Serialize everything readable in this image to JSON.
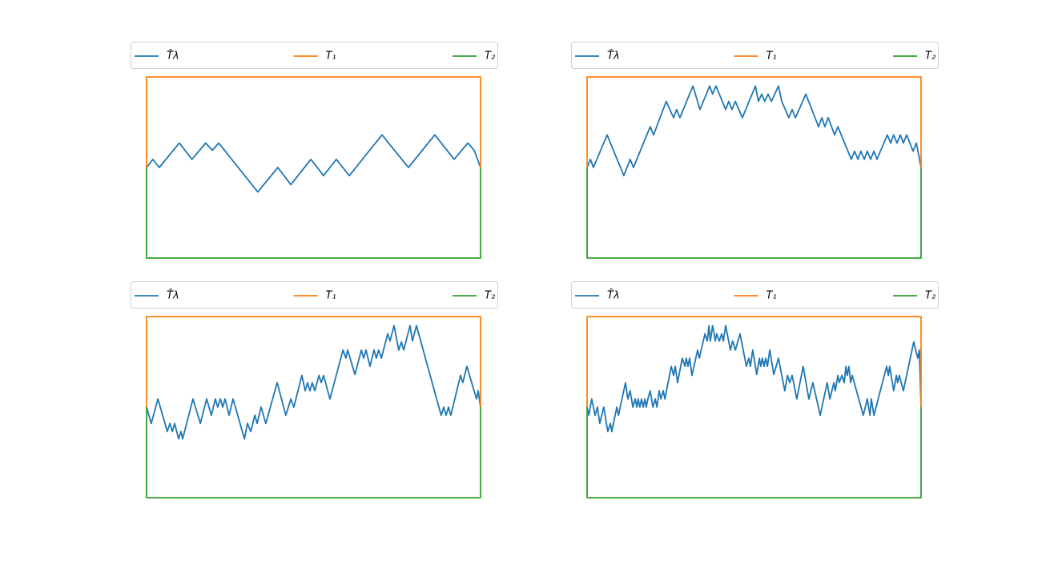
{
  "chart_data": [
    {
      "type": "line",
      "xlim": [
        0,
        100
      ],
      "ylim": [
        -1,
        1
      ],
      "legend": "top",
      "series": [
        {
          "name": "T̂λ",
          "color": "#1f77b4",
          "x": [
            0,
            1.9,
            3.8,
            9.8,
            13.6,
            17.7,
            19.7,
            21.6,
            33.3,
            39.3,
            43.2,
            49.2,
            53.0,
            56.8,
            60.7,
            70.5,
            78.4,
            86.3,
            92.1,
            96.2,
            98.1,
            100
          ],
          "values": [
            0,
            0.09,
            0,
            0.27,
            0.09,
            0.27,
            0.19,
            0.27,
            -0.27,
            0,
            -0.19,
            0.09,
            -0.09,
            0.09,
            -0.09,
            0.36,
            0,
            0.36,
            0.09,
            0.27,
            0.19,
            0
          ]
        },
        {
          "name": "T₁",
          "color": "#ff7f0e",
          "x": [
            0,
            0,
            100,
            100
          ],
          "values": [
            0,
            1,
            1,
            0
          ]
        },
        {
          "name": "T₂",
          "color": "#2ca02c",
          "x": [
            0,
            0,
            100,
            100
          ],
          "values": [
            0,
            -1,
            -1,
            0
          ]
        }
      ]
    },
    {
      "type": "line",
      "xlim": [
        0,
        100
      ],
      "ylim": [
        -1,
        1
      ],
      "legend": "top",
      "series": [
        {
          "name": "T̂λ",
          "color": "#1f77b4",
          "x": [
            0,
            1.0,
            1.9,
            6.0,
            11.0,
            12.9,
            13.9,
            18.9,
            19.9,
            23.7,
            25.9,
            26.8,
            27.8,
            31.7,
            33.8,
            36.7,
            37.6,
            38.6,
            41.5,
            42.4,
            43.4,
            44.4,
            46.5,
            50.4,
            51.3,
            52.3,
            53.2,
            54.2,
            55.2,
            57.3,
            58.3,
            60.4,
            61.4,
            62.4,
            65.5,
            69.3,
            70.3,
            71.2,
            72.2,
            74.1,
            75.1,
            79.1,
            80.1,
            81.1,
            82.0,
            83.0,
            83.9,
            84.9,
            85.9,
            86.8,
            89.9,
            90.9,
            91.8,
            92.8,
            93.8,
            94.7,
            95.7,
            97.6,
            98.6,
            100
          ],
          "values": [
            0,
            0.09,
            0,
            0.36,
            -0.09,
            0.09,
            0,
            0.45,
            0.36,
            0.73,
            0.55,
            0.64,
            0.55,
            0.9,
            0.64,
            0.9,
            0.81,
            0.9,
            0.64,
            0.73,
            0.64,
            0.73,
            0.55,
            0.9,
            0.73,
            0.81,
            0.73,
            0.81,
            0.73,
            0.9,
            0.73,
            0.55,
            0.64,
            0.55,
            0.81,
            0.45,
            0.55,
            0.45,
            0.55,
            0.36,
            0.45,
            0.09,
            0.18,
            0.09,
            0.18,
            0.09,
            0.18,
            0.09,
            0.18,
            0.09,
            0.36,
            0.27,
            0.36,
            0.27,
            0.36,
            0.27,
            0.36,
            0.18,
            0.27,
            0
          ]
        },
        {
          "name": "T₁",
          "color": "#ff7f0e",
          "x": [
            0,
            0,
            100,
            100
          ],
          "values": [
            0,
            1,
            1,
            0
          ]
        },
        {
          "name": "T₂",
          "color": "#2ca02c",
          "x": [
            0,
            0,
            100,
            100
          ],
          "values": [
            0,
            -1,
            -1,
            0
          ]
        }
      ]
    },
    {
      "type": "line",
      "xlim": [
        0,
        100
      ],
      "ylim": [
        -1,
        1
      ],
      "legend": "top",
      "series": [
        {
          "name": "T̂λ",
          "color": "#1f77b4",
          "x": [
            0,
            1.4,
            3.4,
            6.2,
            7.0,
            7.7,
            8.4,
            9.6,
            10.3,
            10.8,
            13.9,
            16.1,
            18.0,
            19.4,
            20.6,
            21.3,
            22.1,
            22.8,
            23.5,
            24.7,
            25.9,
            29.3,
            30.2,
            31.2,
            32.4,
            33.1,
            34.3,
            35.7,
            39.1,
            41.7,
            43.2,
            44.1,
            46.5,
            47.5,
            48.2,
            48.9,
            49.6,
            50.4,
            51.6,
            52.3,
            53.0,
            54.9,
            58.8,
            59.7,
            60.2,
            62.4,
            64.3,
            65.0,
            65.7,
            66.9,
            68.1,
            68.8,
            69.5,
            70.3,
            72.2,
            72.9,
            74.1,
            75.5,
            76.3,
            77.0,
            78.9,
            79.6,
            80.8,
            88.2,
            89.0,
            89.7,
            90.4,
            91.1,
            94.0,
            94.7,
            95.9,
            98.8,
            99.3,
            100
          ],
          "values": [
            0,
            -0.18,
            0.09,
            -0.27,
            -0.18,
            -0.27,
            -0.18,
            -0.35,
            -0.27,
            -0.35,
            0.09,
            -0.18,
            0.09,
            -0.09,
            0.09,
            0,
            0.09,
            0,
            0.09,
            -0.09,
            0.09,
            -0.35,
            -0.18,
            -0.27,
            -0.09,
            -0.18,
            0,
            -0.18,
            0.27,
            -0.09,
            0.09,
            0,
            0.35,
            0.18,
            0.27,
            0.18,
            0.27,
            0.18,
            0.35,
            0.27,
            0.35,
            0.09,
            0.63,
            0.54,
            0.63,
            0.36,
            0.63,
            0.54,
            0.63,
            0.45,
            0.63,
            0.54,
            0.63,
            0.54,
            0.81,
            0.73,
            0.9,
            0.63,
            0.72,
            0.63,
            0.9,
            0.73,
            0.9,
            -0.09,
            0,
            -0.09,
            0,
            -0.09,
            0.35,
            0.27,
            0.45,
            0.09,
            0.18,
            0
          ]
        },
        {
          "name": "T₁",
          "color": "#ff7f0e",
          "x": [
            0,
            0,
            100,
            100
          ],
          "values": [
            0,
            1,
            1,
            0
          ]
        },
        {
          "name": "T₂",
          "color": "#2ca02c",
          "x": [
            0,
            0,
            100,
            100
          ],
          "values": [
            0,
            -1,
            -1,
            0
          ]
        }
      ]
    },
    {
      "type": "line",
      "xlim": [
        0,
        100
      ],
      "ylim": [
        -1,
        1
      ],
      "legend": "top",
      "series": [
        {
          "name": "T̂λ",
          "color": "#1f77b4",
          "x": [
            0,
            0.5,
            1.4,
            2.4,
            3.1,
            3.8,
            5.0,
            6.2,
            7.0,
            7.4,
            8.9,
            9.4,
            11.5,
            12.2,
            12.9,
            13.7,
            14.4,
            14.9,
            15.3,
            15.8,
            16.3,
            16.8,
            17.3,
            17.7,
            18.2,
            18.9,
            19.7,
            20.4,
            20.9,
            21.6,
            22.1,
            22.8,
            23.3,
            25.2,
            25.9,
            26.4,
            27.1,
            28.5,
            29.3,
            29.7,
            30.2,
            30.7,
            31.4,
            33.1,
            33.6,
            35.3,
            36.0,
            36.5,
            36.9,
            37.6,
            38.4,
            38.8,
            39.6,
            40.3,
            40.8,
            41.5,
            42.9,
            43.6,
            44.4,
            45.8,
            47.7,
            48.4,
            48.9,
            49.6,
            50.8,
            51.6,
            52.0,
            52.5,
            53.0,
            53.5,
            54.0,
            54.7,
            55.9,
            56.6,
            57.3,
            59.2,
            60.0,
            60.7,
            61.4,
            62.8,
            64.7,
            66.4,
            67.6,
            69.8,
            71.9,
            72.7,
            73.9,
            74.3,
            75.1,
            75.5,
            76.3,
            77.0,
            77.5,
            77.9,
            78.4,
            78.9,
            79.4,
            82.7,
            83.9,
            84.7,
            85.1,
            85.9,
            89.7,
            90.2,
            90.6,
            91.8,
            92.6,
            93.0,
            93.5,
            94.7,
            97.8,
            99.0,
            99.5,
            100
          ],
          "values": [
            0,
            -0.09,
            0.09,
            -0.09,
            0,
            -0.18,
            0,
            -0.27,
            -0.18,
            -0.27,
            0,
            -0.09,
            0.27,
            0.09,
            0.18,
            0,
            0.09,
            0,
            0.09,
            0,
            0.09,
            0,
            0.09,
            0,
            0.09,
            0.18,
            0,
            0.09,
            0,
            0.18,
            0.09,
            0.18,
            0.09,
            0.45,
            0.35,
            0.45,
            0.27,
            0.54,
            0.45,
            0.54,
            0.45,
            0.54,
            0.35,
            0.63,
            0.54,
            0.81,
            0.73,
            0.9,
            0.73,
            0.9,
            0.73,
            0.81,
            0.73,
            0.81,
            0.73,
            0.9,
            0.63,
            0.73,
            0.63,
            0.81,
            0.45,
            0.54,
            0.45,
            0.63,
            0.36,
            0.54,
            0.45,
            0.54,
            0.45,
            0.54,
            0.45,
            0.63,
            0.36,
            0.45,
            0.54,
            0.18,
            0.35,
            0.27,
            0.35,
            0.09,
            0.45,
            0.09,
            0.27,
            -0.09,
            0.27,
            0.09,
            0.27,
            0.18,
            0.35,
            0.27,
            0.35,
            0.27,
            0.45,
            0.35,
            0.45,
            0.27,
            0.35,
            -0.09,
            0.09,
            -0.09,
            0.09,
            -0.09,
            0.45,
            0.35,
            0.45,
            0.18,
            0.35,
            0.27,
            0.35,
            0.18,
            0.72,
            0.54,
            0.63,
            0
          ]
        },
        {
          "name": "T₁",
          "color": "#ff7f0e",
          "x": [
            0,
            0,
            100,
            100
          ],
          "values": [
            0,
            1,
            1,
            0
          ]
        },
        {
          "name": "T₂",
          "color": "#2ca02c",
          "x": [
            0,
            0,
            100,
            100
          ],
          "values": [
            0,
            -1,
            -1,
            0
          ]
        }
      ]
    }
  ]
}
